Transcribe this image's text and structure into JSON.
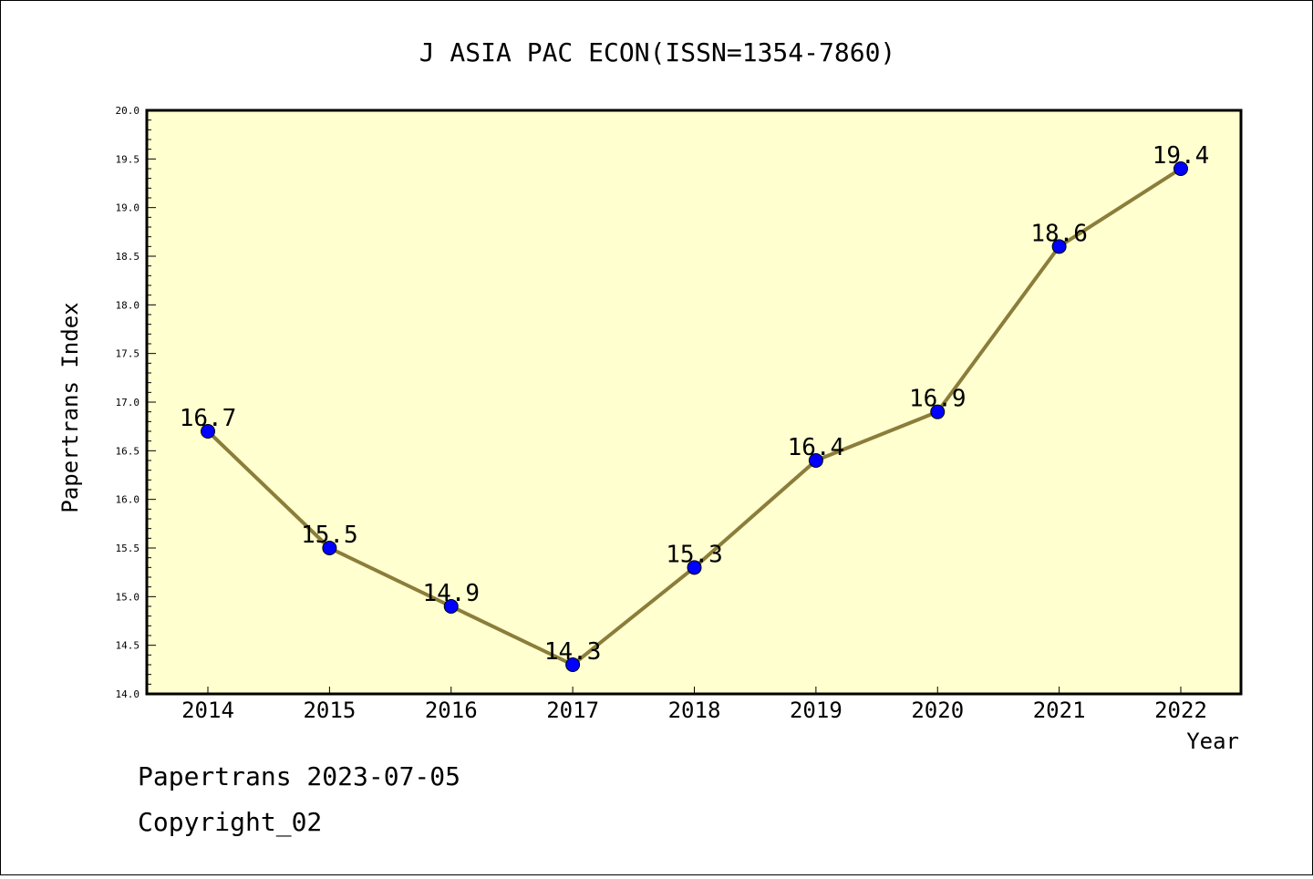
{
  "chart_data": {
    "type": "line",
    "title": "J ASIA PAC ECON(ISSN=1354-7860)",
    "xlabel": "Year",
    "ylabel": "Papertrans Index",
    "x": [
      "2014",
      "2015",
      "2016",
      "2017",
      "2018",
      "2019",
      "2020",
      "2021",
      "2022"
    ],
    "series": [
      {
        "values": [
          16.7,
          15.5,
          14.9,
          14.3,
          15.3,
          16.4,
          16.9,
          18.6,
          19.4
        ]
      }
    ],
    "data_labels": [
      "16.7",
      "15.5",
      "14.9",
      "14.3",
      "15.3",
      "16.4",
      "16.9",
      "18.6",
      "19.4"
    ],
    "ylim": [
      14.0,
      20.0
    ],
    "yticks": [
      "14.0",
      "14.5",
      "15.0",
      "15.5",
      "16.0",
      "16.5",
      "17.0",
      "17.5",
      "18.0",
      "18.5",
      "19.0",
      "19.5",
      "20.0"
    ],
    "grid": false,
    "legend": "none",
    "colors": {
      "plot_background": "#ffffd0",
      "line": "#8b7d3a",
      "marker": "#0000ff"
    }
  },
  "footer": {
    "line1": "Papertrans 2023-07-05",
    "line2": "Copyright_02"
  }
}
